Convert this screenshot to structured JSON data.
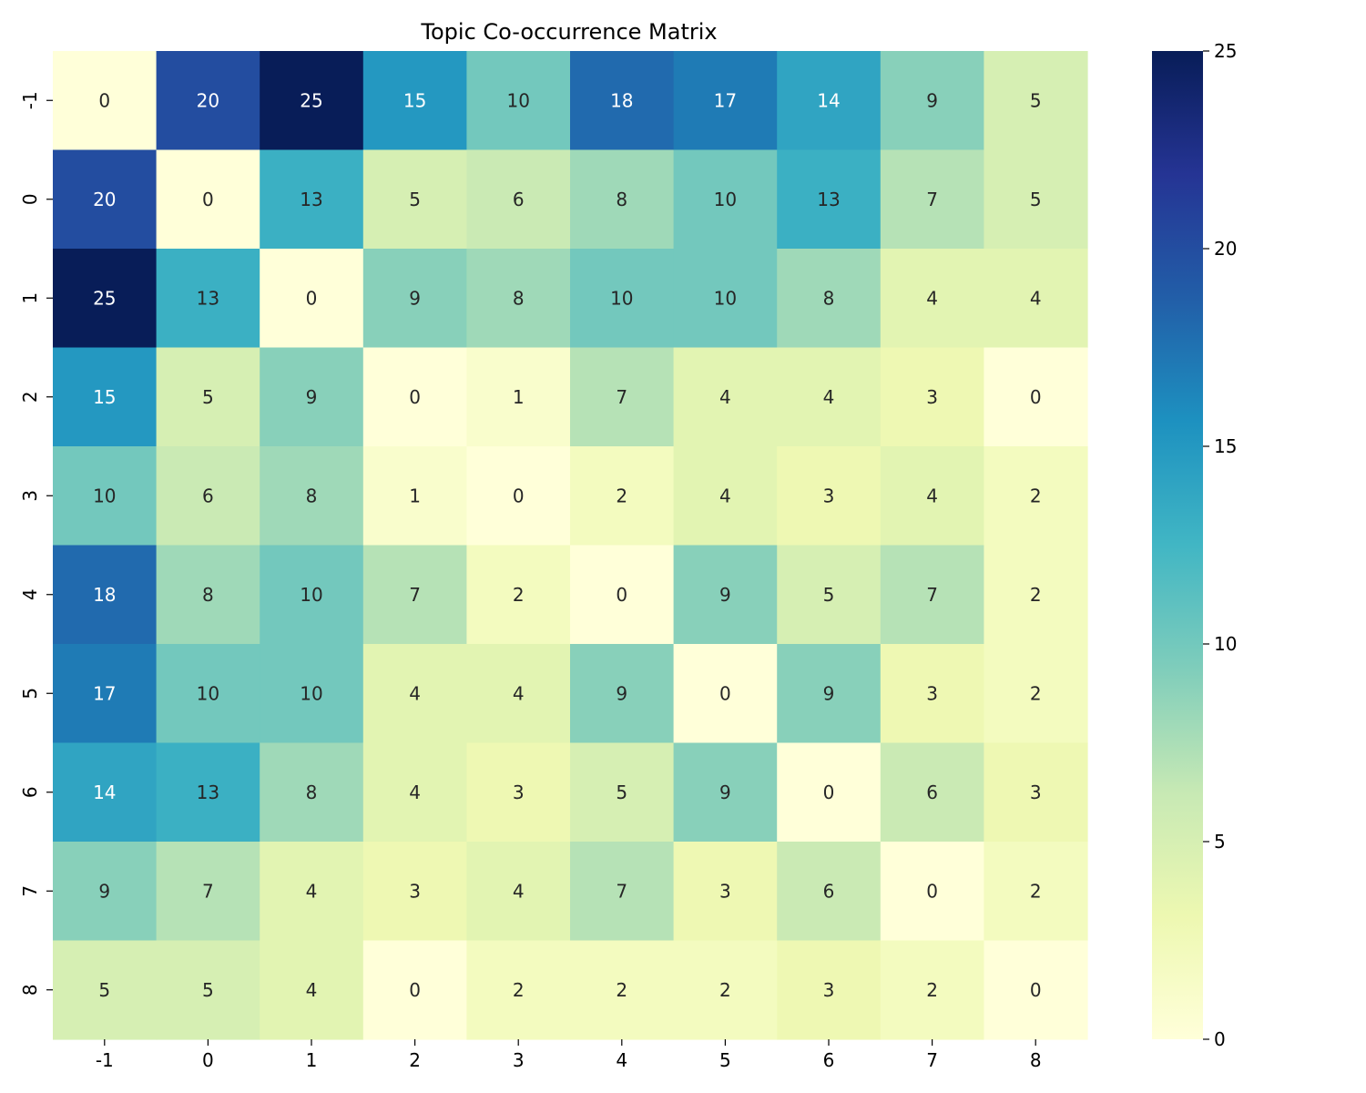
{
  "chart_data": {
    "type": "heatmap",
    "title": "Topic Co-occurrence Matrix",
    "xlabel": "",
    "ylabel": "",
    "x_labels": [
      "-1",
      "0",
      "1",
      "2",
      "3",
      "4",
      "5",
      "6",
      "7",
      "8"
    ],
    "y_labels": [
      "-1",
      "0",
      "1",
      "2",
      "3",
      "4",
      "5",
      "6",
      "7",
      "8"
    ],
    "values": [
      [
        0,
        20,
        25,
        15,
        10,
        18,
        17,
        14,
        9,
        5
      ],
      [
        20,
        0,
        13,
        5,
        6,
        8,
        10,
        13,
        7,
        5
      ],
      [
        25,
        13,
        0,
        9,
        8,
        10,
        10,
        8,
        4,
        4
      ],
      [
        15,
        5,
        9,
        0,
        1,
        7,
        4,
        4,
        3,
        0
      ],
      [
        10,
        6,
        8,
        1,
        0,
        2,
        4,
        3,
        4,
        2
      ],
      [
        18,
        8,
        10,
        7,
        2,
        0,
        9,
        5,
        7,
        2
      ],
      [
        17,
        10,
        10,
        4,
        4,
        9,
        0,
        9,
        3,
        2
      ],
      [
        14,
        13,
        8,
        4,
        3,
        5,
        9,
        0,
        6,
        3
      ],
      [
        9,
        7,
        4,
        3,
        4,
        7,
        3,
        6,
        0,
        2
      ],
      [
        5,
        5,
        4,
        0,
        2,
        2,
        2,
        3,
        2,
        0
      ]
    ],
    "colorbar": {
      "range": [
        0,
        25
      ],
      "ticks": [
        "0",
        "5",
        "10",
        "15",
        "20",
        "25"
      ]
    },
    "colormap_stops": [
      "#ffffd9",
      "#edf8b1",
      "#c7e9b4",
      "#7fcdbb",
      "#41b6c4",
      "#1d91c0",
      "#225ea8",
      "#253494",
      "#081d58"
    ],
    "annotation_colors": {
      "light": "#ffffff",
      "dark": "#262626"
    }
  }
}
